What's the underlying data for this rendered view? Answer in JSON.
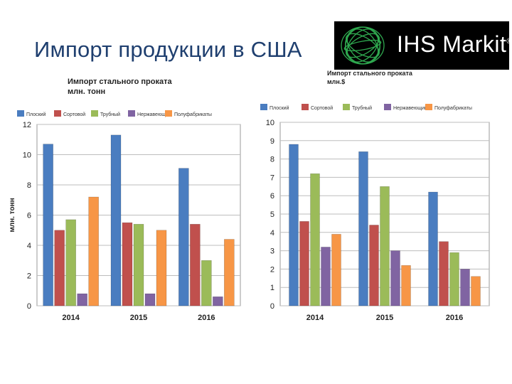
{
  "slide": {
    "title": "Импорт продукции в США",
    "logo": {
      "text": "IHS Markit",
      "reg": "®",
      "background": "#000000",
      "accent": "#2fa84f"
    }
  },
  "chart_data": [
    {
      "type": "bar",
      "title": "Импорт стального проката",
      "subtitle": "млн. тонн",
      "ylabel": "млн. тонн",
      "ylim": [
        0,
        12
      ],
      "yticks": [
        0,
        2,
        4,
        6,
        8,
        10,
        12
      ],
      "categories": [
        "2014",
        "2015",
        "2016"
      ],
      "series": [
        {
          "name": "Плоский",
          "color": "#4a7dc0",
          "values": [
            10.7,
            11.3,
            9.1
          ]
        },
        {
          "name": "Сортовой",
          "color": "#c0504d",
          "values": [
            5.0,
            5.5,
            5.4
          ]
        },
        {
          "name": "Трубный",
          "color": "#9bbb59",
          "values": [
            5.7,
            5.4,
            3.0
          ]
        },
        {
          "name": "Нержавеющий",
          "color": "#8064a2",
          "values": [
            0.8,
            0.8,
            0.6
          ]
        },
        {
          "name": "Полуфабрикаты",
          "color": "#f79646",
          "values": [
            7.2,
            5.0,
            4.4
          ]
        }
      ],
      "grid": true,
      "legend": "top"
    },
    {
      "type": "bar",
      "title": "Импорт стального проката",
      "subtitle": "млн.$",
      "ylim": [
        0,
        10
      ],
      "yticks": [
        0,
        1,
        2,
        3,
        4,
        5,
        6,
        7,
        8,
        9,
        10
      ],
      "categories": [
        "2014",
        "2015",
        "2016"
      ],
      "series": [
        {
          "name": "Плоский",
          "color": "#4a7dc0",
          "values": [
            8.8,
            8.4,
            6.2
          ]
        },
        {
          "name": "Сортовой",
          "color": "#c0504d",
          "values": [
            4.6,
            4.4,
            3.5
          ]
        },
        {
          "name": "Трубный",
          "color": "#9bbb59",
          "values": [
            7.2,
            6.5,
            2.9
          ]
        },
        {
          "name": "Нержавеющий",
          "color": "#8064a2",
          "values": [
            3.2,
            3.0,
            2.0
          ]
        },
        {
          "name": "Полуфабрикаты",
          "color": "#f79646",
          "values": [
            3.9,
            2.2,
            1.6
          ]
        }
      ],
      "grid": true,
      "legend": "top"
    }
  ]
}
